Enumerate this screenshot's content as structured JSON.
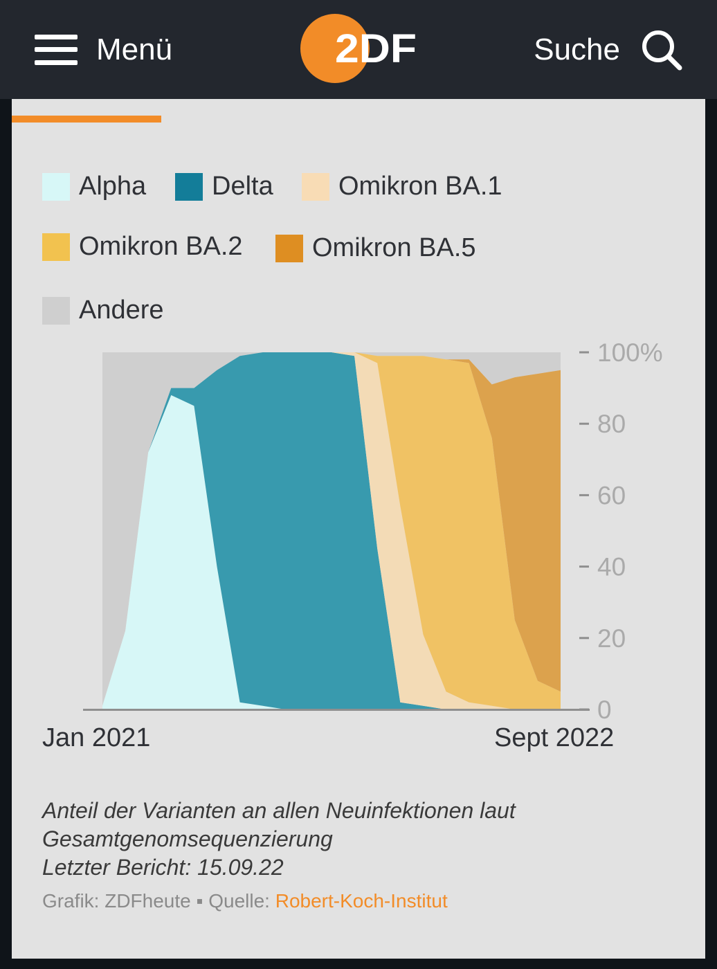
{
  "header": {
    "menu_label": "Menü",
    "search_label": "Suche",
    "logo_text": "2DF"
  },
  "colors": {
    "accent": "#f28c28",
    "header_bg": "#23272e",
    "card_bg": "#e2e2e2"
  },
  "legend": [
    {
      "label": "Alpha",
      "color": "#d7f7f7"
    },
    {
      "label": "Delta",
      "color": "#137d99"
    },
    {
      "label": "Omikron BA.1",
      "color": "#f8dcb5"
    },
    {
      "label": "Omikron BA.2",
      "color": "#f2c24f"
    },
    {
      "label": "Omikron BA.5",
      "color": "#de8e22"
    },
    {
      "label": "Andere",
      "color": "#cfcfcf"
    }
  ],
  "chart_data": {
    "type": "area",
    "stacked": true,
    "percent": true,
    "x_labels": [
      "Jan 2021",
      "Sept 2022"
    ],
    "y_ticks": [
      "100%",
      "80",
      "60",
      "40",
      "20",
      "0"
    ],
    "ylim": [
      0,
      100
    ],
    "x": [
      "2021-01",
      "2021-02",
      "2021-03",
      "2021-04",
      "2021-05",
      "2021-06",
      "2021-07",
      "2021-08",
      "2021-09",
      "2021-10",
      "2021-11",
      "2021-12",
      "2022-01",
      "2022-02",
      "2022-03",
      "2022-04",
      "2022-05",
      "2022-06",
      "2022-07",
      "2022-08",
      "2022-09"
    ],
    "series": [
      {
        "name": "Alpha",
        "color": "#d7f7f7",
        "values": [
          1,
          22,
          72,
          88,
          85,
          40,
          2,
          1,
          0,
          0,
          0,
          0,
          0,
          0,
          0,
          0,
          0,
          0,
          0,
          0,
          0
        ]
      },
      {
        "name": "Delta",
        "color": "#389aae",
        "values": [
          0,
          0,
          0,
          2,
          5,
          55,
          97,
          99,
          100,
          100,
          100,
          99,
          45,
          2,
          1,
          0,
          0,
          0,
          0,
          0,
          0
        ]
      },
      {
        "name": "Omikron BA.1",
        "color": "#f3dbb6",
        "values": [
          0,
          0,
          0,
          0,
          0,
          0,
          0,
          0,
          0,
          0,
          0,
          1,
          52,
          55,
          20,
          5,
          2,
          1,
          0,
          0,
          0
        ]
      },
      {
        "name": "Omikron BA.2",
        "color": "#f0c264",
        "values": [
          0,
          0,
          0,
          0,
          0,
          0,
          0,
          0,
          0,
          0,
          0,
          0,
          2,
          42,
          78,
          93,
          95,
          75,
          25,
          8,
          5
        ]
      },
      {
        "name": "Omikron BA.5",
        "color": "#dca24d",
        "values": [
          0,
          0,
          0,
          0,
          0,
          0,
          0,
          0,
          0,
          0,
          0,
          0,
          0,
          0,
          0,
          0,
          1,
          15,
          68,
          86,
          90
        ]
      },
      {
        "name": "Andere",
        "color": "#cfcfcf",
        "values": [
          99,
          78,
          28,
          10,
          10,
          5,
          1,
          0,
          0,
          0,
          0,
          0,
          1,
          1,
          1,
          2,
          2,
          9,
          7,
          6,
          5
        ]
      }
    ]
  },
  "caption": {
    "line1": "Anteil der Varianten an allen Neuinfektionen laut",
    "line2": "Gesamtgenomsequenzierung",
    "line3": "Letzter Bericht: 15.09.22"
  },
  "footer": {
    "graphic": "Grafik: ZDFheute",
    "separator": "▪",
    "source_label": "Quelle:",
    "source_link": "Robert-Koch-Institut"
  }
}
